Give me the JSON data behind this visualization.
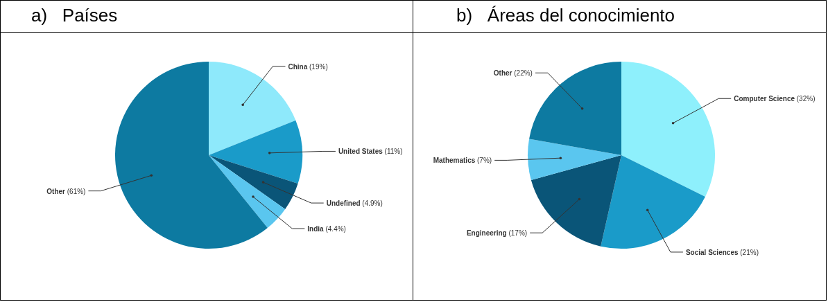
{
  "chart_data": [
    {
      "type": "pie",
      "title": "a)   Países",
      "categories": [
        "China",
        "United States",
        "Undefined",
        "India",
        "Other"
      ],
      "values": [
        19,
        11,
        4.9,
        4.4,
        61
      ],
      "value_labels": [
        "(19%)",
        "(11%)",
        "(4.9%)",
        "(4.4%)",
        "(61%)"
      ],
      "colors": [
        "#8ee9fb",
        "#1a9bc9",
        "#0a5578",
        "#5ac6ef",
        "#0d7aa1"
      ],
      "legend": false
    },
    {
      "type": "pie",
      "title": "b)   Áreas del conocimiento",
      "categories": [
        "Computer Science",
        "Social Sciences",
        "Engineering",
        "Mathematics",
        "Other"
      ],
      "values": [
        32,
        21,
        17,
        7,
        22
      ],
      "value_labels": [
        "(32%)",
        "(21%)",
        "(17%)",
        "(7%)",
        "(22%)"
      ],
      "colors": [
        "#8ef0fc",
        "#1a9bc9",
        "#0a5578",
        "#5ac6ef",
        "#0d7aa1"
      ],
      "legend": false
    }
  ]
}
